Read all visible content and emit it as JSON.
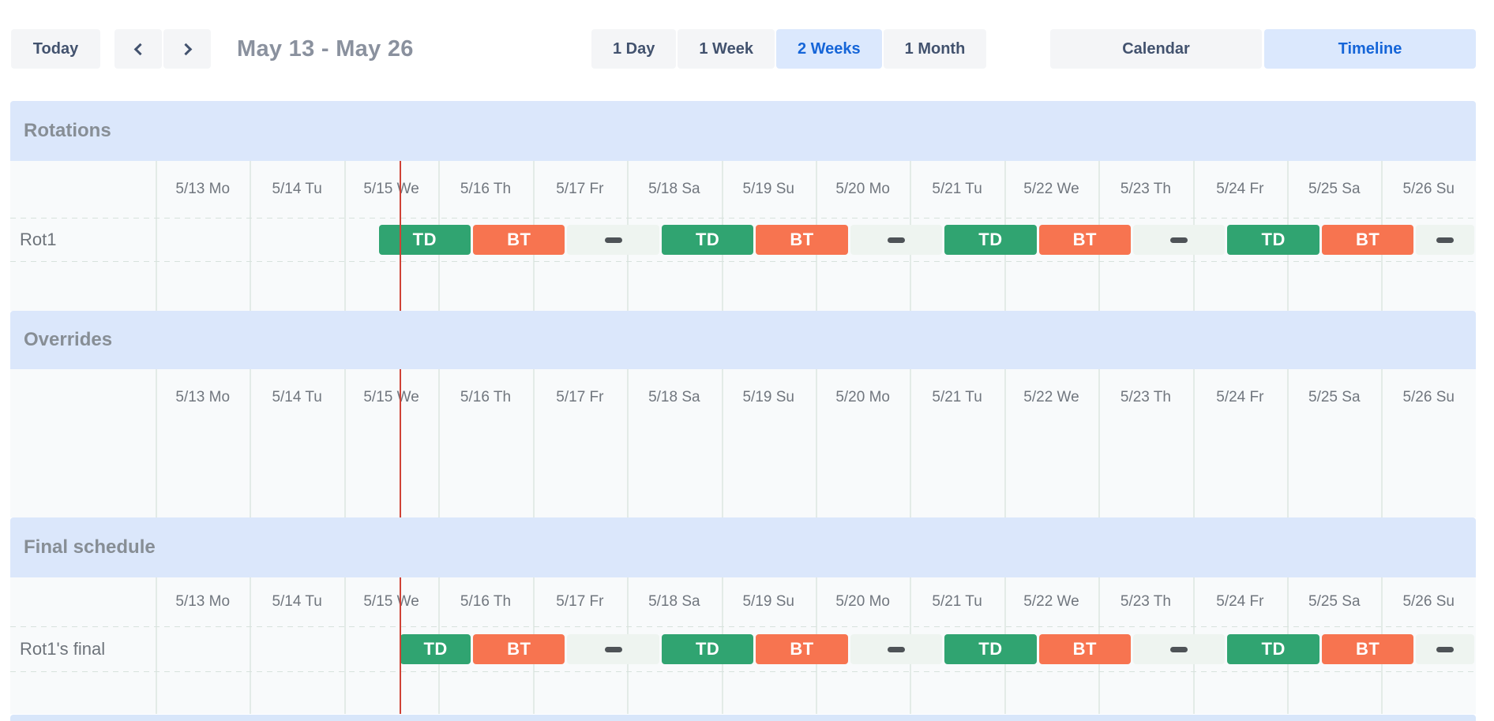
{
  "toolbar": {
    "today_label": "Today",
    "range_title": "May 13 - May 26",
    "views": [
      {
        "label": "1 Day",
        "active": false
      },
      {
        "label": "1 Week",
        "active": false
      },
      {
        "label": "2 Weeks",
        "active": true
      },
      {
        "label": "1 Month",
        "active": false
      }
    ],
    "modes": [
      {
        "label": "Calendar",
        "active": false
      },
      {
        "label": "Timeline",
        "active": true
      }
    ]
  },
  "schedule": {
    "days": [
      "5/13 Mo",
      "5/14 Tu",
      "5/15 We",
      "5/16 Th",
      "5/17 Fr",
      "5/18 Sa",
      "5/19 Su",
      "5/20 Mo",
      "5/21 Tu",
      "5/22 We",
      "5/23 Th",
      "5/24 Fr",
      "5/25 Sa",
      "5/26 Su"
    ],
    "total_days": 14,
    "now_day_position": 2.585,
    "sections": [
      {
        "title": "Rotations",
        "rows": [
          {
            "label": "Rot1",
            "segments": [
              {
                "type": "shift",
                "label": "TD",
                "color": "green",
                "start": 2.354,
                "end": 3.354
              },
              {
                "type": "shift",
                "label": "BT",
                "color": "orange",
                "start": 3.354,
                "end": 4.354
              },
              {
                "type": "gap",
                "label": "",
                "start": 4.354,
                "end": 5.354
              },
              {
                "type": "shift",
                "label": "TD",
                "color": "green",
                "start": 5.354,
                "end": 6.354
              },
              {
                "type": "shift",
                "label": "BT",
                "color": "orange",
                "start": 6.354,
                "end": 7.354
              },
              {
                "type": "gap",
                "label": "",
                "start": 7.354,
                "end": 8.354
              },
              {
                "type": "shift",
                "label": "TD",
                "color": "green",
                "start": 8.354,
                "end": 9.354
              },
              {
                "type": "shift",
                "label": "BT",
                "color": "orange",
                "start": 9.354,
                "end": 10.354
              },
              {
                "type": "gap",
                "label": "",
                "start": 10.354,
                "end": 11.354
              },
              {
                "type": "shift",
                "label": "TD",
                "color": "green",
                "start": 11.354,
                "end": 12.354
              },
              {
                "type": "shift",
                "label": "BT",
                "color": "orange",
                "start": 12.354,
                "end": 13.354
              },
              {
                "type": "gap",
                "label": "",
                "start": 13.354,
                "end": 14.354
              }
            ]
          }
        ]
      },
      {
        "title": "Overrides",
        "rows": []
      },
      {
        "title": "Final schedule",
        "rows": [
          {
            "label": "Rot1's final",
            "segments": [
              {
                "type": "shift",
                "label": "TD",
                "color": "green",
                "start": 2.585,
                "end": 3.354
              },
              {
                "type": "shift",
                "label": "BT",
                "color": "orange",
                "start": 3.354,
                "end": 4.354
              },
              {
                "type": "gap",
                "label": "",
                "start": 4.354,
                "end": 5.354
              },
              {
                "type": "shift",
                "label": "TD",
                "color": "green",
                "start": 5.354,
                "end": 6.354
              },
              {
                "type": "shift",
                "label": "BT",
                "color": "orange",
                "start": 6.354,
                "end": 7.354
              },
              {
                "type": "gap",
                "label": "",
                "start": 7.354,
                "end": 8.354
              },
              {
                "type": "shift",
                "label": "TD",
                "color": "green",
                "start": 8.354,
                "end": 9.354
              },
              {
                "type": "shift",
                "label": "BT",
                "color": "orange",
                "start": 9.354,
                "end": 10.354
              },
              {
                "type": "gap",
                "label": "",
                "start": 10.354,
                "end": 11.354
              },
              {
                "type": "shift",
                "label": "TD",
                "color": "green",
                "start": 11.354,
                "end": 12.354
              },
              {
                "type": "shift",
                "label": "BT",
                "color": "orange",
                "start": 12.354,
                "end": 13.354
              },
              {
                "type": "gap",
                "label": "",
                "start": 13.354,
                "end": 14.354
              }
            ]
          }
        ]
      }
    ]
  },
  "colors": {
    "shift_green": "#30a471",
    "shift_orange": "#f77450",
    "gap_strip": "#eef4f0",
    "now_line": "#cf4236",
    "header_bg": "#dbe7fb",
    "active_text": "#1565d8",
    "active_bg": "#dbe8fd"
  }
}
